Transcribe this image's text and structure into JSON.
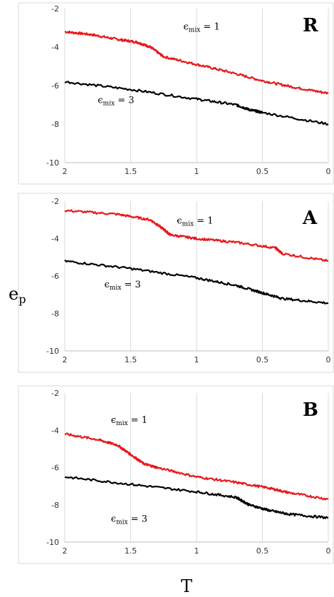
{
  "chart_data": [
    {
      "type": "line",
      "panel": "R",
      "xlim": [
        2,
        0
      ],
      "ylim": [
        -10,
        -2
      ],
      "xticks": [
        "2",
        "1.5",
        "1",
        "0.5",
        "0"
      ],
      "yticks": [
        "-2",
        "-4",
        "-6",
        "-8",
        "-10"
      ],
      "grid": "vertical",
      "series": [
        {
          "color": "#e8191c",
          "x": [
            2.0,
            1.8,
            1.6,
            1.45,
            1.35,
            1.25,
            1.0,
            0.75,
            0.5,
            0.25,
            0.0
          ],
          "y": [
            -3.2,
            -3.35,
            -3.6,
            -3.75,
            -4.0,
            -4.5,
            -4.9,
            -5.3,
            -5.75,
            -6.1,
            -6.4
          ]
        },
        {
          "color": "#000000",
          "x": [
            2.0,
            1.5,
            1.0,
            0.7,
            0.6,
            0.5,
            0.0
          ],
          "y": [
            -5.8,
            -6.2,
            -6.7,
            -7.0,
            -7.25,
            -7.4,
            -8.0
          ]
        }
      ],
      "labels": [
        {
          "text_main": "ϵ",
          "text_sub": "mix",
          "text_tail": " = 1",
          "x": 1.1,
          "y": -3.1
        },
        {
          "text_main": "ϵ",
          "text_sub": "mix",
          "text_tail": " = 3",
          "x": 1.75,
          "y": -6.9
        }
      ]
    },
    {
      "type": "line",
      "panel": "A",
      "xlim": [
        2,
        0
      ],
      "ylim": [
        -10,
        -2
      ],
      "xticks": [
        "2",
        "1.5",
        "1",
        "0.5",
        "0"
      ],
      "yticks": [
        "-2",
        "-4",
        "-6",
        "-8",
        "-10"
      ],
      "grid": "vertical",
      "series": [
        {
          "color": "#e8191c",
          "x": [
            2.0,
            1.6,
            1.35,
            1.25,
            1.2,
            1.0,
            0.7,
            0.4,
            0.35,
            0.0
          ],
          "y": [
            -2.5,
            -2.7,
            -3.0,
            -3.5,
            -3.8,
            -4.0,
            -4.2,
            -4.5,
            -4.8,
            -5.2
          ]
        },
        {
          "color": "#000000",
          "x": [
            2.0,
            1.5,
            1.0,
            0.7,
            0.5,
            0.35,
            0.0
          ],
          "y": [
            -5.2,
            -5.6,
            -6.1,
            -6.5,
            -6.9,
            -7.2,
            -7.45
          ]
        }
      ],
      "labels": [
        {
          "text_main": "ϵ",
          "text_sub": "mix",
          "text_tail": " = 1",
          "x": 1.15,
          "y": -3.2
        },
        {
          "text_main": "ϵ",
          "text_sub": "mix",
          "text_tail": " = 3",
          "x": 1.7,
          "y": -6.6
        }
      ]
    },
    {
      "type": "line",
      "panel": "B",
      "xlim": [
        2,
        0
      ],
      "ylim": [
        -10,
        -2
      ],
      "xticks": [
        "2",
        "1.5",
        "1",
        "0.5",
        "0"
      ],
      "yticks": [
        "-2",
        "-4",
        "-6",
        "-8",
        "-10"
      ],
      "grid": "vertical",
      "series": [
        {
          "color": "#e8191c",
          "x": [
            2.0,
            1.75,
            1.6,
            1.5,
            1.4,
            1.3,
            1.0,
            0.7,
            0.45,
            0.3,
            0.0
          ],
          "y": [
            -4.2,
            -4.5,
            -4.8,
            -5.3,
            -5.8,
            -6.0,
            -6.5,
            -6.8,
            -7.1,
            -7.35,
            -7.7
          ]
        },
        {
          "color": "#000000",
          "x": [
            2.0,
            1.5,
            1.0,
            0.7,
            0.6,
            0.45,
            0.3,
            0.0
          ],
          "y": [
            -6.5,
            -6.9,
            -7.3,
            -7.6,
            -8.0,
            -8.3,
            -8.5,
            -8.7
          ]
        }
      ],
      "labels": [
        {
          "text_main": "ϵ",
          "text_sub": "mix",
          "text_tail": " = 1",
          "x": 1.65,
          "y": -3.6
        },
        {
          "text_main": "ϵ",
          "text_sub": "mix",
          "text_tail": " = 3",
          "x": 1.65,
          "y": -8.9
        }
      ]
    }
  ],
  "axis_titles": {
    "y_main": "e",
    "y_sub": "p",
    "x": "T"
  }
}
